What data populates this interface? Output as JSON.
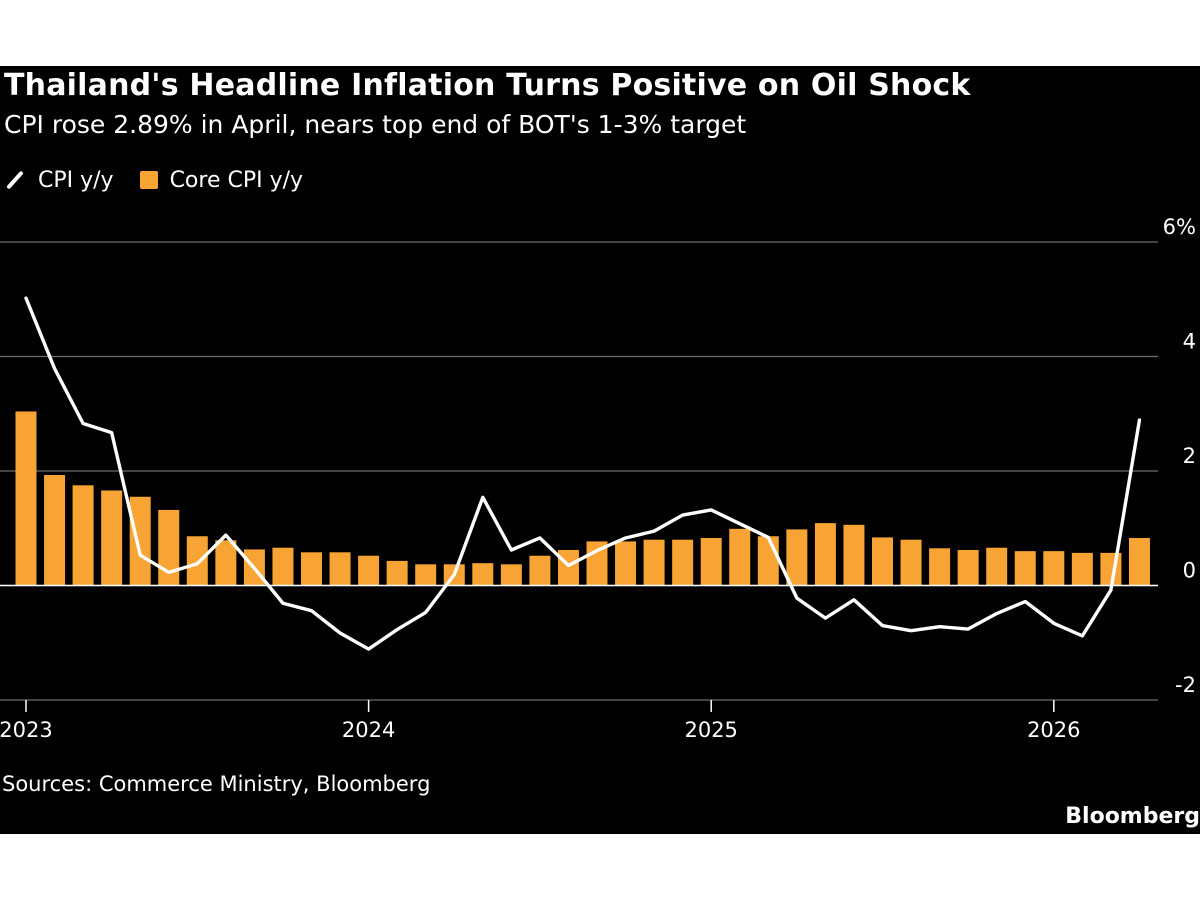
{
  "header": {
    "title": "Thailand's Headline Inflation Turns Positive on Oil Shock",
    "subtitle": "CPI rose 2.89% in April, nears top end of BOT's 1-3% target"
  },
  "footer": {
    "source": "Sources: Commerce Ministry, Bloomberg",
    "brand": "Bloomberg"
  },
  "colors": {
    "background": "#000000",
    "line": "#ffffff",
    "bars": "#f7a434",
    "grid": "#6e6e6e"
  },
  "chart_data": {
    "type": "bar",
    "title": "Thailand's Headline Inflation Turns Positive on Oil Shock",
    "subtitle": "CPI rose 2.89% in April, nears top end of BOT's 1-3% target",
    "legend": {
      "position": "top-left",
      "entries": [
        "CPI y/y",
        "Core CPI y/y"
      ]
    },
    "grid": true,
    "ylim": [
      -2,
      6
    ],
    "yticks": [
      {
        "value": 6,
        "label": "6%"
      },
      {
        "value": 4,
        "label": "4"
      },
      {
        "value": 2,
        "label": "2"
      },
      {
        "value": 0,
        "label": "0"
      },
      {
        "value": -2,
        "label": "-2"
      }
    ],
    "xticks": [
      {
        "month": "2023-01",
        "label": "2023"
      },
      {
        "month": "2024-01",
        "label": "2024"
      },
      {
        "month": "2025-01",
        "label": "2025"
      },
      {
        "month": "2026-01",
        "label": "2026"
      }
    ],
    "months": [
      "2023-01",
      "2023-02",
      "2023-03",
      "2023-04",
      "2023-05",
      "2023-06",
      "2023-07",
      "2023-08",
      "2023-09",
      "2023-10",
      "2023-11",
      "2023-12",
      "2024-01",
      "2024-02",
      "2024-03",
      "2024-04",
      "2024-05",
      "2024-06",
      "2024-07",
      "2024-08",
      "2024-09",
      "2024-10",
      "2024-11",
      "2024-12",
      "2025-01",
      "2025-02",
      "2025-03",
      "2025-04",
      "2025-05",
      "2025-06",
      "2025-07",
      "2025-08",
      "2025-09",
      "2025-10",
      "2025-11",
      "2025-12",
      "2026-01",
      "2026-02",
      "2026-03",
      "2026-04"
    ],
    "series": [
      {
        "name": "Core CPI y/y",
        "type": "bar",
        "values": [
          3.04,
          1.93,
          1.75,
          1.66,
          1.55,
          1.32,
          0.86,
          0.79,
          0.63,
          0.66,
          0.58,
          0.58,
          0.52,
          0.43,
          0.37,
          0.37,
          0.39,
          0.37,
          0.52,
          0.62,
          0.77,
          0.77,
          0.8,
          0.8,
          0.83,
          0.99,
          0.86,
          0.98,
          1.09,
          1.06,
          0.84,
          0.8,
          0.65,
          0.62,
          0.66,
          0.6,
          0.6,
          0.57,
          0.57,
          0.83
        ]
      },
      {
        "name": "CPI y/y",
        "type": "line",
        "values": [
          5.02,
          3.79,
          2.83,
          2.67,
          0.53,
          0.23,
          0.38,
          0.88,
          0.3,
          -0.31,
          -0.44,
          -0.83,
          -1.11,
          -0.77,
          -0.47,
          0.19,
          1.54,
          0.62,
          0.83,
          0.35,
          0.61,
          0.83,
          0.95,
          1.23,
          1.32,
          1.08,
          0.84,
          -0.22,
          -0.57,
          -0.25,
          -0.7,
          -0.79,
          -0.72,
          -0.76,
          -0.49,
          -0.28,
          -0.66,
          -0.88,
          -0.08,
          2.89
        ]
      }
    ]
  }
}
